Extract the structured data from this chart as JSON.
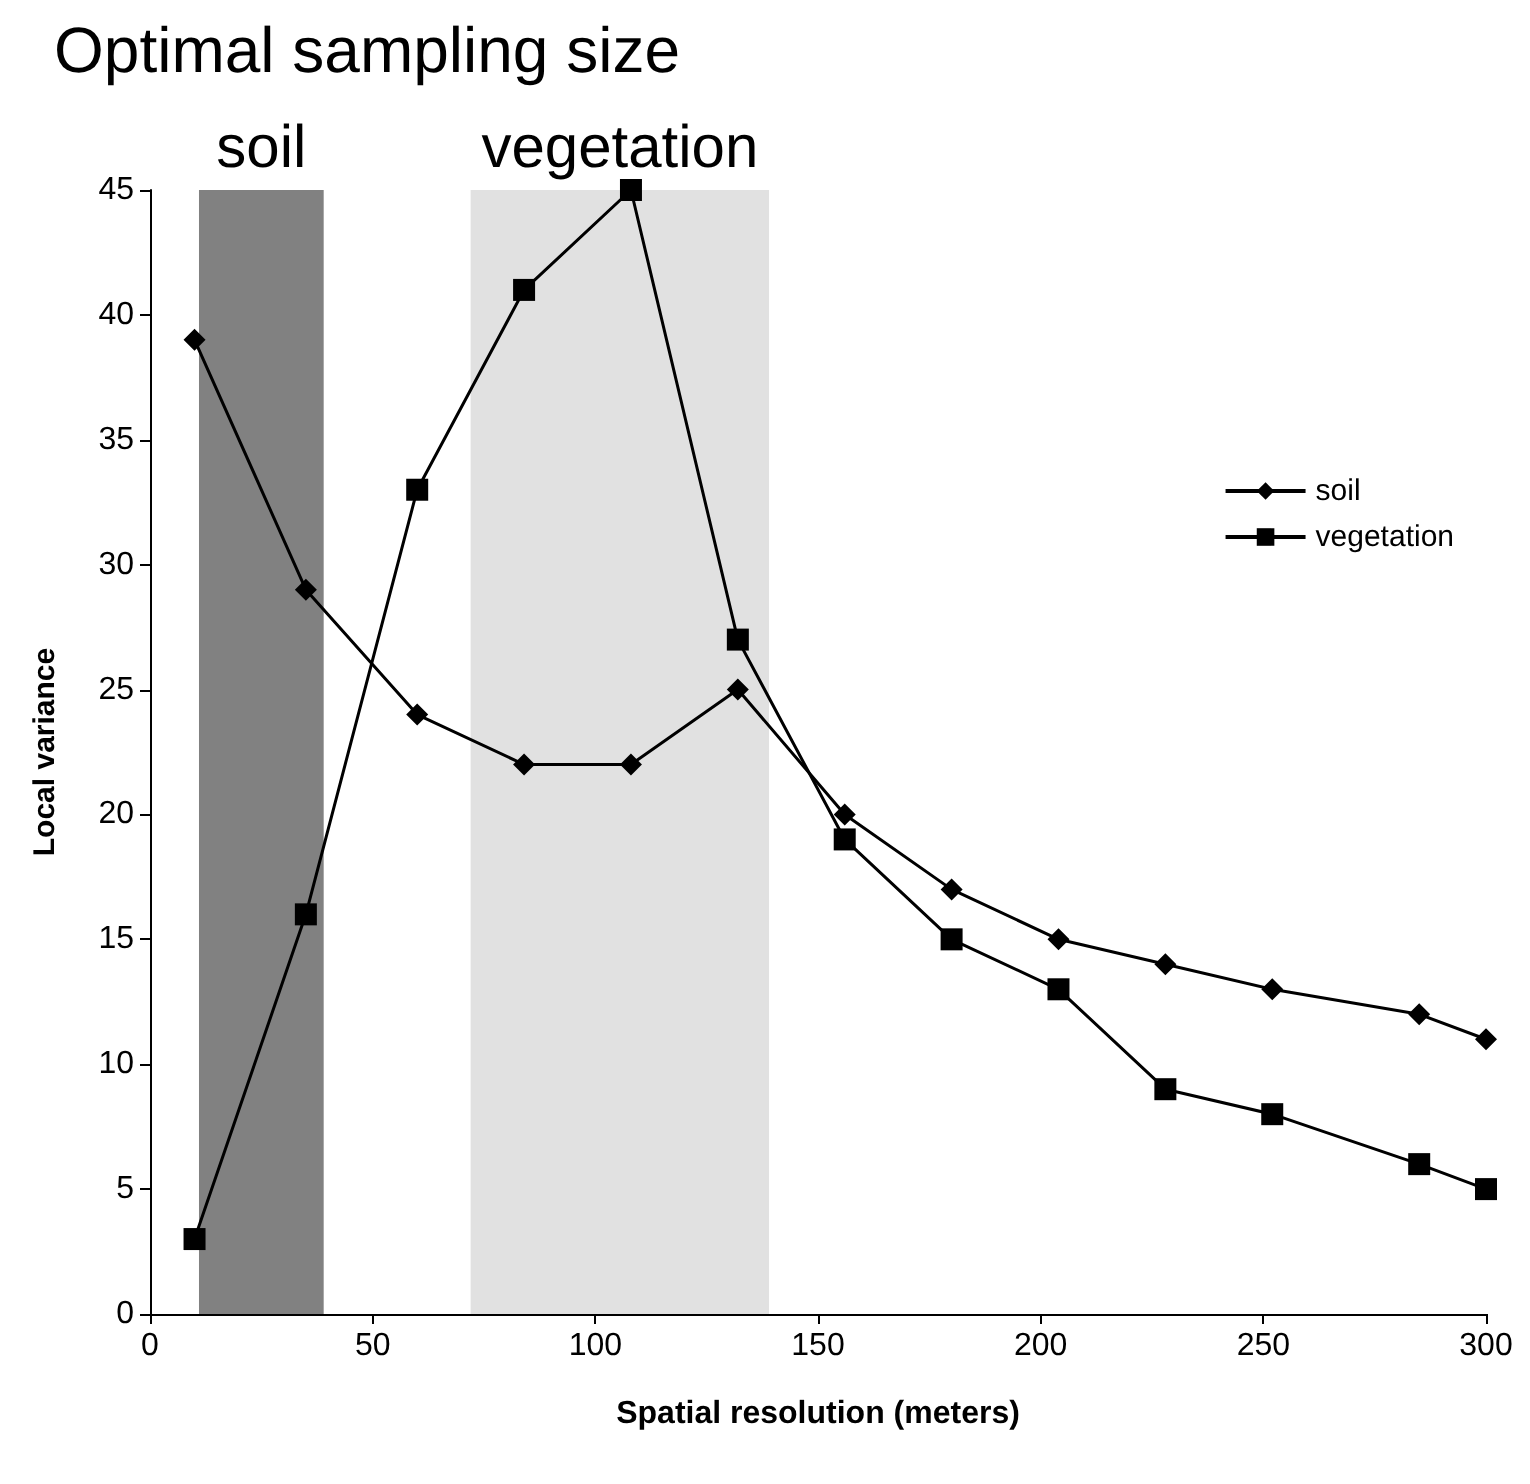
{
  "chart_data": {
    "type": "line",
    "title": "Optimal sampling size",
    "xlabel": "Spatial resolution (meters)",
    "ylabel": "Local variance",
    "x": [
      10,
      35,
      60,
      84,
      108,
      132,
      156,
      180,
      204,
      228,
      252,
      285,
      300
    ],
    "series": [
      {
        "name": "soil",
        "color": "#000000",
        "marker": "diamond",
        "values": [
          39,
          29,
          24,
          22,
          22,
          25,
          20,
          17,
          15,
          14,
          13,
          12,
          11
        ]
      },
      {
        "name": "vegetation",
        "color": "#000000",
        "marker": "square",
        "values": [
          3,
          16,
          33,
          41,
          45,
          27,
          19,
          15,
          13,
          9,
          8,
          6,
          5
        ]
      }
    ],
    "bands": [
      {
        "axis": "x",
        "from": 11,
        "to": 39,
        "label": "soil",
        "color": "#1a1a1a"
      },
      {
        "axis": "x",
        "from": 72,
        "to": 139,
        "label": "vegetation",
        "color": "#c8c8c8"
      }
    ],
    "xlim": [
      0,
      300
    ],
    "xticks": [
      0,
      50,
      100,
      150,
      200,
      250,
      300
    ],
    "ylim": [
      0,
      45
    ],
    "yticks": [
      0,
      5,
      10,
      15,
      20,
      25,
      30,
      35,
      40,
      45
    ],
    "grid": false,
    "legend": "right",
    "line_style": "solid"
  }
}
